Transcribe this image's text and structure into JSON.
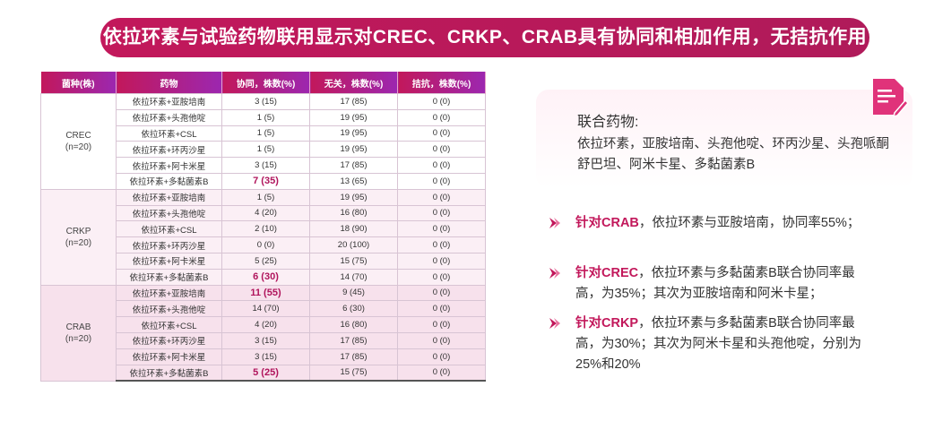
{
  "banner": {
    "title": "依拉环素与试验药物联用显示对CREC、CRKP、CRAB具有协同和相加作用，无拮抗作用"
  },
  "table": {
    "headers": [
      "菌种(株)",
      "药物",
      "协同，株数(%)",
      "无关，株数(%)",
      "拮抗，株数(%)"
    ],
    "groups": [
      {
        "name": "CREC",
        "n": "(n=20)",
        "rows": [
          {
            "drug": "依拉环素+亚胺培南",
            "syn": "3 (15)",
            "ind": "17 (85)",
            "ant": "0 (0)"
          },
          {
            "drug": "依拉环素+头孢他啶",
            "syn": "1 (5)",
            "ind": "19 (95)",
            "ant": "0 (0)"
          },
          {
            "drug": "依拉环素+CSL",
            "syn": "1 (5)",
            "ind": "19 (95)",
            "ant": "0 (0)"
          },
          {
            "drug": "依拉环素+环丙沙星",
            "syn": "1 (5)",
            "ind": "19 (95)",
            "ant": "0 (0)"
          },
          {
            "drug": "依拉环素+阿卡米星",
            "syn": "3 (15)",
            "ind": "17 (85)",
            "ant": "0 (0)"
          },
          {
            "drug": "依拉环素+多黏菌素B",
            "syn": "7 (35)",
            "ind": "13 (65)",
            "ant": "0 (0)",
            "highlight": true
          }
        ]
      },
      {
        "name": "CRKP",
        "n": "(n=20)",
        "rows": [
          {
            "drug": "依拉环素+亚胺培南",
            "syn": "1 (5)",
            "ind": "19 (95)",
            "ant": "0 (0)"
          },
          {
            "drug": "依拉环素+头孢他啶",
            "syn": "4 (20)",
            "ind": "16 (80)",
            "ant": "0 (0)"
          },
          {
            "drug": "依拉环素+CSL",
            "syn": "2 (10)",
            "ind": "18 (90)",
            "ant": "0 (0)"
          },
          {
            "drug": "依拉环素+环丙沙星",
            "syn": "0 (0)",
            "ind": "20 (100)",
            "ant": "0 (0)"
          },
          {
            "drug": "依拉环素+阿卡米星",
            "syn": "5 (25)",
            "ind": "15 (75)",
            "ant": "0 (0)"
          },
          {
            "drug": "依拉环素+多黏菌素B",
            "syn": "6 (30)",
            "ind": "14 (70)",
            "ant": "0 (0)",
            "highlight": true
          }
        ]
      },
      {
        "name": "CRAB",
        "n": "(n=20)",
        "rows": [
          {
            "drug": "依拉环素+亚胺培南",
            "syn": "11 (55)",
            "ind": "9 (45)",
            "ant": "0 (0)",
            "highlight": true
          },
          {
            "drug": "依拉环素+头孢他啶",
            "syn": "14 (70)",
            "ind": "6 (30)",
            "ant": "0 (0)"
          },
          {
            "drug": "依拉环素+CSL",
            "syn": "4 (20)",
            "ind": "16 (80)",
            "ant": "0 (0)"
          },
          {
            "drug": "依拉环素+环丙沙星",
            "syn": "3 (15)",
            "ind": "17 (85)",
            "ant": "0 (0)"
          },
          {
            "drug": "依拉环素+阿卡米星",
            "syn": "3 (15)",
            "ind": "17 (85)",
            "ant": "0 (0)"
          },
          {
            "drug": "依拉环素+多黏菌素B",
            "syn": "5 (25)",
            "ind": "15 (75)",
            "ant": "0 (0)",
            "highlight": true
          }
        ]
      }
    ]
  },
  "panel": {
    "title": "联合药物:",
    "text": "依拉环素，亚胺培南、头孢他啶、环丙沙星、头孢哌酮舒巴坦、阿米卡星、多黏菌素B",
    "icon": "document-edit-icon"
  },
  "bullets": [
    {
      "key": "针对CRAB",
      "text": "，依拉环素与亚胺培南，协同率55%；"
    },
    {
      "key": "针对CREC",
      "text": "，依拉环素与多黏菌素B联合协同率最高，为35%；其次为亚胺培南和阿米卡星；"
    },
    {
      "key": "针对CRKP",
      "text": "，依拉环素与多黏菌素B联合协同率最高，为30%；其次为阿米卡星和头孢他啶，分别为25%和20%"
    }
  ],
  "colors": {
    "accent": "#c2185b",
    "accent2": "#9c27b0"
  }
}
